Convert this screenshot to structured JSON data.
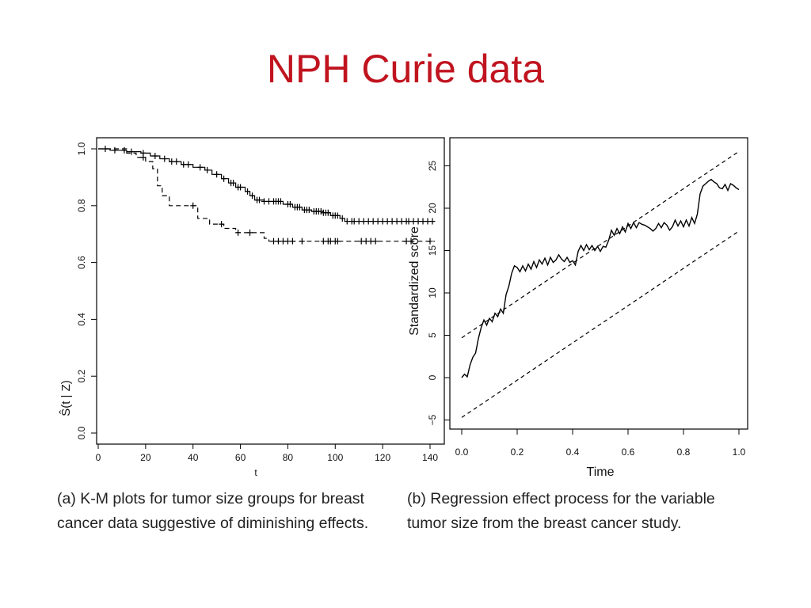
{
  "slide": {
    "title": "NPH Curie data"
  },
  "chart_data": [
    {
      "type": "line",
      "panel": "a",
      "xlabel": "t",
      "ylabel": "Ŝ(t | Z)",
      "xlim": [
        0,
        140
      ],
      "ylim": [
        0,
        1
      ],
      "xticks": [
        "0",
        "20",
        "40",
        "60",
        "80",
        "100",
        "120",
        "140"
      ],
      "yticks": [
        "0.0",
        "0.2",
        "0.4",
        "0.6",
        "0.8",
        "1.0"
      ],
      "grid": false,
      "legend": "none",
      "series": [
        {
          "style": "solid",
          "steps": [
            [
              0,
              1.0
            ],
            [
              5,
              0.995
            ],
            [
              12,
              0.99
            ],
            [
              18,
              0.985
            ],
            [
              22,
              0.975
            ],
            [
              26,
              0.965
            ],
            [
              30,
              0.955
            ],
            [
              35,
              0.945
            ],
            [
              40,
              0.935
            ],
            [
              45,
              0.925
            ],
            [
              48,
              0.91
            ],
            [
              52,
              0.895
            ],
            [
              55,
              0.88
            ],
            [
              58,
              0.865
            ],
            [
              62,
              0.85
            ],
            [
              64,
              0.835
            ],
            [
              66,
              0.82
            ],
            [
              70,
              0.815
            ],
            [
              78,
              0.805
            ],
            [
              82,
              0.795
            ],
            [
              86,
              0.785
            ],
            [
              90,
              0.78
            ],
            [
              95,
              0.775
            ],
            [
              98,
              0.765
            ],
            [
              102,
              0.755
            ],
            [
              104,
              0.745
            ],
            [
              142,
              0.745
            ]
          ],
          "censor_t": [
            3,
            7,
            11,
            14,
            19,
            24,
            28,
            31,
            33,
            36,
            38,
            43,
            46,
            50,
            53,
            56,
            57,
            59,
            60,
            63,
            65,
            67,
            68,
            70,
            72,
            74,
            75,
            76,
            77,
            80,
            81,
            83,
            84,
            85,
            87,
            88,
            89,
            91,
            92,
            93,
            94,
            95,
            96,
            97,
            99,
            100,
            101,
            103,
            105,
            107,
            108,
            110,
            112,
            114,
            116,
            118,
            120,
            122,
            124,
            126,
            128,
            130,
            131,
            133,
            135,
            137,
            139,
            141
          ]
        },
        {
          "style": "dashed",
          "steps": [
            [
              0,
              1.0
            ],
            [
              12,
              0.985
            ],
            [
              16,
              0.97
            ],
            [
              20,
              0.955
            ],
            [
              23,
              0.93
            ],
            [
              25,
              0.87
            ],
            [
              27,
              0.835
            ],
            [
              30,
              0.8
            ],
            [
              42,
              0.755
            ],
            [
              47,
              0.735
            ],
            [
              53,
              0.72
            ],
            [
              58,
              0.705
            ],
            [
              70,
              0.685
            ],
            [
              72,
              0.675
            ],
            [
              142,
              0.675
            ]
          ],
          "censor_t": [
            19,
            40,
            52,
            59,
            64,
            74,
            76,
            78,
            80,
            82,
            86,
            95,
            97,
            98,
            100,
            101,
            111,
            113,
            115,
            117,
            130,
            132,
            140
          ]
        }
      ]
    },
    {
      "type": "line",
      "panel": "b",
      "xlabel": "Time",
      "ylabel": "Standardized score",
      "xlim": [
        0,
        1
      ],
      "ylim": [
        -5,
        27
      ],
      "xticks": [
        "0.0",
        "0.2",
        "0.4",
        "0.6",
        "0.8",
        "1.0"
      ],
      "yticks": [
        "−5",
        "0",
        "5",
        "10",
        "15",
        "20",
        "25"
      ],
      "grid": false,
      "legend": "none",
      "series": [
        {
          "style": "solid",
          "x": [
            0.0,
            0.01,
            0.02,
            0.03,
            0.04,
            0.05,
            0.06,
            0.07,
            0.08,
            0.09,
            0.1,
            0.11,
            0.12,
            0.13,
            0.14,
            0.15,
            0.16,
            0.17,
            0.18,
            0.19,
            0.2,
            0.21,
            0.22,
            0.23,
            0.24,
            0.25,
            0.26,
            0.27,
            0.28,
            0.29,
            0.3,
            0.31,
            0.32,
            0.33,
            0.34,
            0.35,
            0.36,
            0.37,
            0.38,
            0.39,
            0.4,
            0.41,
            0.42,
            0.43,
            0.44,
            0.45,
            0.46,
            0.47,
            0.48,
            0.49,
            0.5,
            0.51,
            0.52,
            0.53,
            0.54,
            0.55,
            0.56,
            0.57,
            0.58,
            0.59,
            0.6,
            0.61,
            0.62,
            0.63,
            0.64,
            0.65,
            0.66,
            0.67,
            0.68,
            0.69,
            0.7,
            0.71,
            0.72,
            0.73,
            0.74,
            0.75,
            0.76,
            0.77,
            0.78,
            0.79,
            0.8,
            0.81,
            0.82,
            0.83,
            0.84,
            0.85,
            0.86,
            0.87,
            0.88,
            0.89,
            0.9,
            0.91,
            0.92,
            0.93,
            0.94,
            0.95,
            0.96,
            0.97,
            0.98,
            0.99,
            1.0
          ],
          "y": [
            0.0,
            0.4,
            0.1,
            1.5,
            2.4,
            2.9,
            4.6,
            5.9,
            6.8,
            6.2,
            7.0,
            6.6,
            7.6,
            7.2,
            8.1,
            7.6,
            9.8,
            10.8,
            12.3,
            13.2,
            13.0,
            12.5,
            13.2,
            12.6,
            13.4,
            12.8,
            13.7,
            13.0,
            13.9,
            13.4,
            14.1,
            13.3,
            14.2,
            13.6,
            13.9,
            14.5,
            14.0,
            13.7,
            14.2,
            13.6,
            13.8,
            13.3,
            14.9,
            15.6,
            15.0,
            15.7,
            15.1,
            15.6,
            15.0,
            15.5,
            14.9,
            15.5,
            15.4,
            16.2,
            17.4,
            16.8,
            17.6,
            17.0,
            17.8,
            17.2,
            18.2,
            17.6,
            18.3,
            17.7,
            18.3,
            18.1,
            18.0,
            17.8,
            17.6,
            17.3,
            17.6,
            18.2,
            17.7,
            18.3,
            18.0,
            17.4,
            17.8,
            18.6,
            17.9,
            18.5,
            17.8,
            18.6,
            17.9,
            18.9,
            18.2,
            19.3,
            21.7,
            22.6,
            22.9,
            23.2,
            23.4,
            23.1,
            22.9,
            22.4,
            22.3,
            22.8,
            22.1,
            22.9,
            22.7,
            22.4,
            22.2
          ]
        },
        {
          "style": "dashed",
          "x": [
            0,
            1
          ],
          "y": [
            4.7,
            26.7
          ]
        },
        {
          "style": "dashed",
          "x": [
            0,
            1
          ],
          "y": [
            -4.7,
            17.3
          ]
        }
      ]
    }
  ],
  "captions": {
    "a": "(a) K-M plots for tumor size groups for breast cancer data suggestive of diminishing effects.",
    "b_line1": "(b) Regression effect process for the variable",
    "b_line2": "tumor size from the breast cancer study."
  }
}
